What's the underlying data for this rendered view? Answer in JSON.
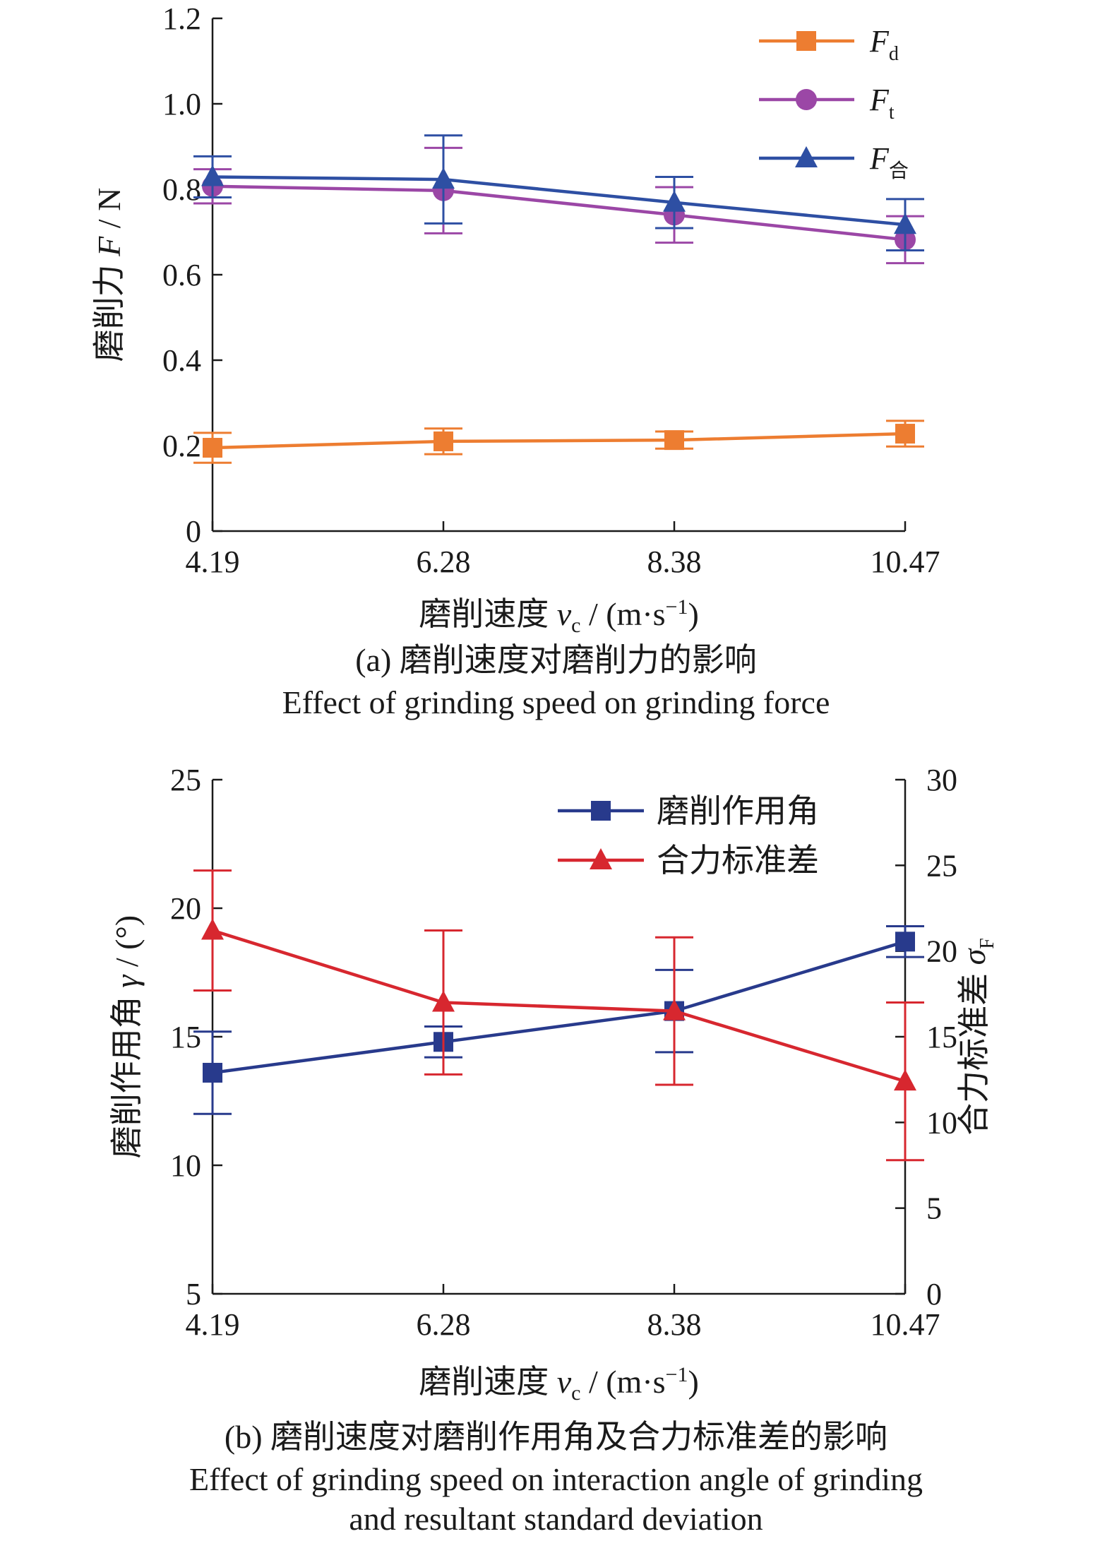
{
  "chart_data": [
    {
      "type": "line",
      "x_tick_labels": [
        "4.19",
        "6.28",
        "8.38",
        "10.47"
      ],
      "x": [
        4.19,
        6.28,
        8.38,
        10.47
      ],
      "xlabel": {
        "main": "磨削速度 ",
        "var": "v",
        "sub": "c",
        "unit": " / (m·s",
        "sup": "−1",
        "close": ")"
      },
      "ylabel": {
        "main": "磨削力 ",
        "var": "F",
        "unit": " / N"
      },
      "ylim": [
        0,
        1.2
      ],
      "y_ticks": [
        0,
        0.2,
        0.4,
        0.6,
        0.8,
        1.0,
        1.2
      ],
      "y_tick_labels": [
        "0",
        "0.2",
        "0.4",
        "0.6",
        "0.8",
        "1.0",
        "1.2"
      ],
      "legend_position": "top-right",
      "grid": false,
      "series": [
        {
          "name": "F_d",
          "label_main": "F",
          "label_sub": "d",
          "color": "#ed7d31",
          "marker": "square",
          "values": [
            0.195,
            0.21,
            0.213,
            0.228
          ],
          "error": [
            0.035,
            0.03,
            0.02,
            0.03
          ]
        },
        {
          "name": "F_t",
          "label_main": "F",
          "label_sub": "t",
          "color": "#9b47a6",
          "marker": "circle",
          "values": [
            0.807,
            0.797,
            0.74,
            0.682
          ],
          "error": [
            0.04,
            0.1,
            0.065,
            0.055
          ]
        },
        {
          "name": "F_合",
          "label_main": "F",
          "label_sub": "合",
          "color": "#2e4fa3",
          "marker": "triangle",
          "values": [
            0.829,
            0.823,
            0.769,
            0.717
          ],
          "error": [
            0.048,
            0.103,
            0.06,
            0.06
          ]
        }
      ],
      "caption_cn": "(a) 磨削速度对磨削力的影响",
      "caption_en": "Effect of grinding speed on grinding force"
    },
    {
      "type": "line",
      "x_tick_labels": [
        "4.19",
        "6.28",
        "8.38",
        "10.47"
      ],
      "x": [
        4.19,
        6.28,
        8.38,
        10.47
      ],
      "xlabel": {
        "main": "磨削速度 ",
        "var": "v",
        "sub": "c",
        "unit": " / (m·s",
        "sup": "−1",
        "close": ")"
      },
      "ylabel_left": {
        "main": "磨削作用角 ",
        "var": "γ",
        "unit": " / (°)"
      },
      "ylabel_right": {
        "main": "合力标准差 ",
        "var": "σ",
        "sub": "F"
      },
      "ylim_left": [
        5,
        25
      ],
      "y_ticks_left": [
        5,
        10,
        15,
        20,
        25
      ],
      "y_tick_labels_left": [
        "5",
        "10",
        "15",
        "20",
        "25"
      ],
      "ylim_right": [
        0,
        30
      ],
      "y_ticks_right": [
        0,
        5,
        10,
        15,
        20,
        25,
        30
      ],
      "y_tick_labels_right": [
        "0",
        "5",
        "10",
        "15",
        "20",
        "25",
        "30"
      ],
      "legend_position": "top-right",
      "grid": false,
      "series": [
        {
          "name": "磨削作用角",
          "axis": "left",
          "color": "#283a8c",
          "marker": "square",
          "values": [
            13.6,
            14.8,
            16.0,
            18.7
          ],
          "error": [
            1.6,
            0.6,
            1.6,
            0.6
          ]
        },
        {
          "name": "合力标准差",
          "axis": "right",
          "color": "#d7272f",
          "marker": "triangle",
          "values": [
            21.2,
            17.0,
            16.5,
            12.4
          ],
          "error": [
            3.5,
            4.2,
            4.3,
            4.6
          ]
        }
      ],
      "caption_cn": "(b) 磨削速度对磨削作用角及合力标准差的影响",
      "caption_en_line1": "Effect of grinding speed on interaction angle of grinding",
      "caption_en_line2": "and resultant standard deviation"
    }
  ]
}
